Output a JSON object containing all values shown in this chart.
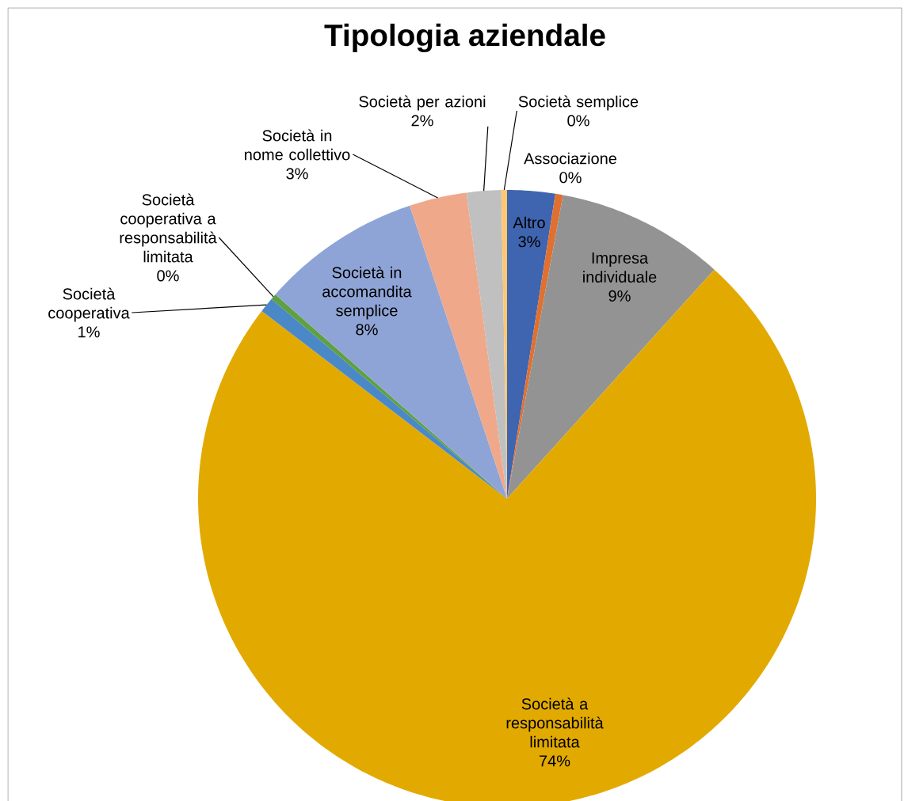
{
  "chart_data": {
    "type": "pie",
    "title": "Tipologia aziendale",
    "categories": [
      "Altro",
      "Associazione",
      "Impresa individuale",
      "Società a responsabilità limitata",
      "Società cooperativa",
      "Società cooperativa a responsabilità limitata",
      "Società in accomandita semplice",
      "Società in nome collettivo",
      "Società per azioni",
      "Società semplice"
    ],
    "values": [
      2.5,
      0.4,
      8.8,
      73.7,
      0.8,
      0.3,
      8.4,
      3.0,
      1.8,
      0.3
    ],
    "value_labels": [
      "3%",
      "0%",
      "9%",
      "74%",
      "1%",
      "0%",
      "8%",
      "3%",
      "2%",
      "0%"
    ],
    "colors": [
      "#3f64b0",
      "#e07030",
      "#939393",
      "#e2aa00",
      "#4a88c8",
      "#5fa040",
      "#8fa4d6",
      "#f0a88a",
      "#c0c0c0",
      "#ffc870"
    ]
  }
}
